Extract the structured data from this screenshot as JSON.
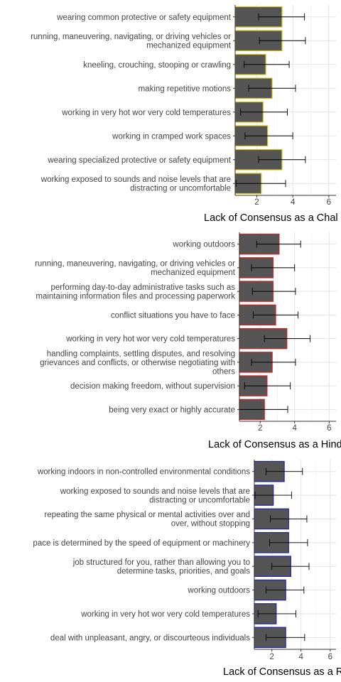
{
  "chart_data": [
    {
      "type": "bar",
      "orientation": "horizontal",
      "xlabel": "Lack of Consensus as a Chal",
      "xlim": [
        0.8,
        6.4
      ],
      "xticks": [
        "2",
        "4",
        "6"
      ],
      "grid": true,
      "bar_fill": "#555555",
      "bar_outline": "#d4c21a",
      "error_bar_color": "#000000",
      "categories": [
        "wearing common protective or safety equipment",
        "running, maneuvering, navigating, or driving vehicles or\nmechanized equipment",
        "kneeling, crouching, stooping or crawling",
        "making repetitive motions",
        "working in very hot wor very cold temperatures",
        "working in cramped work spaces",
        "wearing specialized protective or safety equipment",
        "working exposed to sounds and noise levels that are\ndistracting or uncomfortable"
      ],
      "values": [
        3.4,
        3.4,
        2.5,
        2.85,
        2.35,
        2.6,
        3.4,
        2.25
      ],
      "error_low": [
        2.1,
        2.15,
        1.3,
        1.55,
        1.1,
        1.35,
        2.1,
        0.85
      ],
      "error_high": [
        4.65,
        4.7,
        3.8,
        4.15,
        3.7,
        4.0,
        4.7,
        3.6
      ]
    },
    {
      "type": "bar",
      "orientation": "horizontal",
      "xlabel": "Lack of Consensus as a Hind",
      "xlim": [
        0.8,
        6.4
      ],
      "xticks": [
        "2",
        "4",
        "6"
      ],
      "grid": true,
      "bar_fill": "#555555",
      "bar_outline": "#cc2222",
      "error_bar_color": "#000000",
      "categories": [
        "working outdoors",
        "running, maneuvering, navigating, or driving vehicles or\nmechanized equipment",
        "performing day-to-day administrative tasks such as\nmaintaining information files and processing paperwork",
        "conflict situations you have to face",
        "working in very hot wor very cold temperatures",
        "handling complaints, settling disputes, and resolving\ngrievances and conflicts, or otherwise negotiating with\nothers",
        "decision making freedom, without supervision",
        "being very exact or highly accurate"
      ],
      "values": [
        3.1,
        2.75,
        2.75,
        2.9,
        3.55,
        2.7,
        2.4,
        2.25
      ],
      "error_low": [
        1.8,
        1.5,
        1.55,
        1.6,
        2.25,
        1.5,
        1.1,
        0.8
      ],
      "error_high": [
        4.35,
        4.0,
        4.05,
        4.2,
        4.9,
        4.05,
        3.75,
        3.6
      ]
    },
    {
      "type": "bar",
      "orientation": "horizontal",
      "xlabel": "Lack of Consensus as a Re",
      "xlim": [
        0.8,
        6.4
      ],
      "xticks": [
        "2",
        "4",
        "6"
      ],
      "grid": true,
      "bar_fill": "#555555",
      "bar_outline": "#2222aa",
      "error_bar_color": "#000000",
      "categories": [
        "working indoors in non-controlled environmental conditions",
        "working exposed to sounds and noise levels that are\ndistracting or uncomfortable",
        "repeating the same physical or mental activities over and\nover, without stopping",
        "pace is determined by the speed of equipment or machinery",
        "job structured for you, rather than allowing you to\ndetermine tasks, priorities, and goals",
        "working outdoors",
        "working in very hot wor very cold temperatures",
        "deal with unpleasant, angry, or discourteous individuals"
      ],
      "values": [
        2.85,
        2.1,
        3.15,
        3.15,
        3.3,
        2.95,
        2.3,
        2.95
      ],
      "error_low": [
        1.6,
        0.85,
        1.9,
        1.85,
        2.0,
        1.6,
        1.05,
        1.6
      ],
      "error_high": [
        4.1,
        3.35,
        4.4,
        4.45,
        4.55,
        4.2,
        3.65,
        4.25
      ]
    }
  ]
}
